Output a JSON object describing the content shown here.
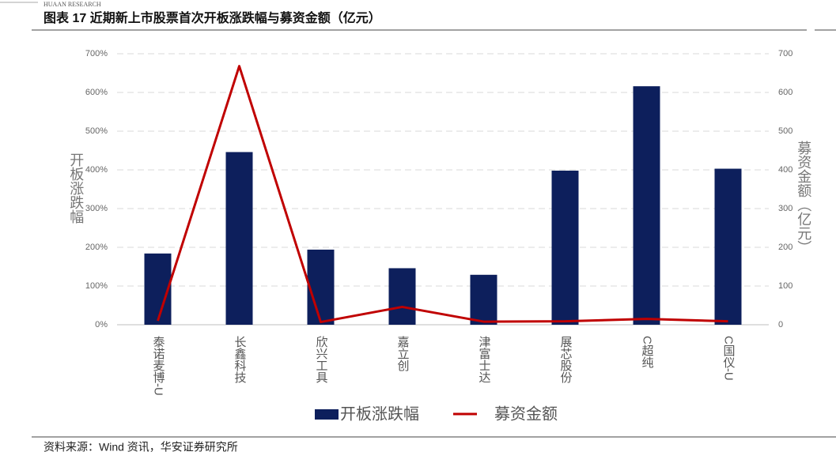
{
  "brand": "HUAAN RESEARCH",
  "chart_data": {
    "type": "combo",
    "title": "图表 17 近期新上市股票首次开板涨跌幅与募资金额（亿元）",
    "source": "资料来源：Wind 资讯，华安证券研究所",
    "y_label": "开板涨跌幅",
    "y2_label": "募资金额（亿元）",
    "categories": [
      "泰诺麦博-U",
      "长鑫科技",
      "欣兴工具",
      "嘉立创",
      "津富士达",
      "展芯股份",
      "C超纯",
      "C国仪-U"
    ],
    "series": [
      {
        "name": "开板涨跌幅",
        "type": "bar",
        "color": "#0d1f5c",
        "values": [
          184,
          446,
          194,
          146,
          129,
          398,
          616,
          403
        ]
      },
      {
        "name": "募资金额",
        "type": "line",
        "axis": "y2",
        "color": "#c00000",
        "values": [
          10,
          668,
          7,
          46,
          8,
          9,
          15,
          9
        ]
      }
    ],
    "ylim": [
      0,
      700
    ],
    "yticks": [
      {
        "value": 0,
        "label": "0%"
      },
      {
        "value": 100,
        "label": "100%"
      },
      {
        "value": 200,
        "label": "200%"
      },
      {
        "value": 300,
        "label": "300%"
      },
      {
        "value": 400,
        "label": "400%"
      },
      {
        "value": 500,
        "label": "500%"
      },
      {
        "value": 600,
        "label": "600%"
      },
      {
        "value": 700,
        "label": "700%"
      }
    ],
    "y2lim": [
      0,
      700
    ],
    "y2ticks": [
      0,
      100,
      200,
      300,
      400,
      500,
      600,
      700
    ],
    "grid": true,
    "legend": "bottom"
  }
}
